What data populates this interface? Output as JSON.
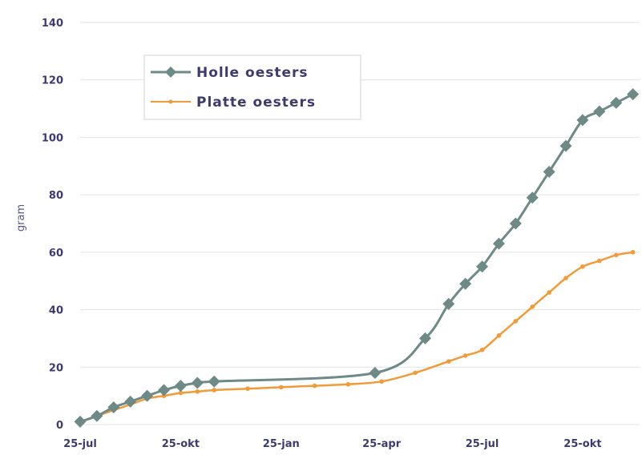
{
  "chart_data": {
    "type": "line",
    "title": "",
    "xlabel": "",
    "ylabel": "gram",
    "ylim": [
      0,
      140
    ],
    "yticks": [
      0,
      20,
      40,
      60,
      80,
      100,
      120,
      140
    ],
    "x_tick_labels": [
      "25-jul",
      "25-okt",
      "25-jan",
      "25-apr",
      "25-jul",
      "25-okt"
    ],
    "x_tick_positions": [
      0,
      3,
      6,
      9,
      12,
      15
    ],
    "grid": true,
    "legend_position": "top-left",
    "series": [
      {
        "name": "Holle oesters",
        "color": "#6e8a86",
        "marker": "diamond",
        "x": [
          0,
          0.5,
          1.0,
          1.5,
          2.0,
          2.5,
          3.0,
          3.5,
          4.0,
          8.8,
          10.3,
          11.0,
          11.5,
          12.0,
          12.5,
          13.0,
          13.5,
          14.0,
          14.5,
          15.0,
          15.5,
          16.0,
          16.5
        ],
        "values": [
          1,
          3,
          6,
          8,
          10,
          12,
          13.5,
          14.5,
          15,
          18,
          30,
          42,
          49,
          55,
          63,
          70,
          79,
          88,
          97,
          106,
          109,
          112,
          115
        ]
      },
      {
        "name": "Platte oesters",
        "color": "#f29a38",
        "marker": "dot",
        "x": [
          0,
          0.5,
          1.0,
          1.5,
          2.0,
          2.5,
          3.0,
          3.5,
          4.0,
          5.0,
          6.0,
          7.0,
          8.0,
          9.0,
          10.0,
          11.0,
          11.5,
          12.0,
          12.5,
          13.0,
          13.5,
          14.0,
          14.5,
          15.0,
          15.5,
          16.0,
          16.5
        ],
        "values": [
          1,
          3,
          5,
          7,
          9,
          10,
          11,
          11.5,
          12,
          12.5,
          13,
          13.5,
          14,
          15,
          18,
          22,
          24,
          26,
          31,
          36,
          41,
          46,
          51,
          55,
          57,
          59,
          60
        ]
      }
    ]
  }
}
